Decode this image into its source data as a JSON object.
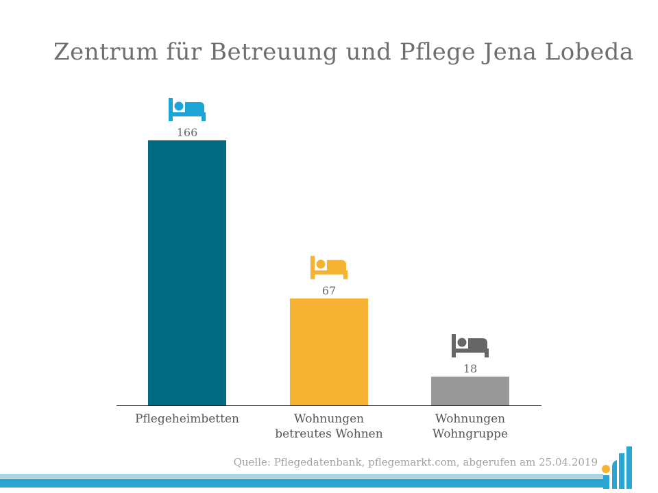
{
  "title": "Zentrum für Betreuung und Pflege Jena Lobeda",
  "source": "Quelle: Pflegedatenbank, pflegemarkt.com, abgerufen am 25.04.2019",
  "chart_data": {
    "type": "bar",
    "title": "Zentrum für Betreuung und Pflege Jena Lobeda",
    "xlabel": "",
    "ylabel": "",
    "ylim": [
      0,
      166
    ],
    "grid": false,
    "legend": "none",
    "categories": [
      [
        "Pflegeheimbetten"
      ],
      [
        "Wohnungen",
        "betreutes Wohnen"
      ],
      [
        "Wohnungen",
        "Wohngruppe"
      ]
    ],
    "values": [
      166,
      67,
      18
    ],
    "colors": [
      "#006a83",
      "#f5b233",
      "#989898"
    ],
    "icon_colors": [
      "#1ba4d6",
      "#f5b233",
      "#666666"
    ],
    "icon": "bed-icon"
  }
}
